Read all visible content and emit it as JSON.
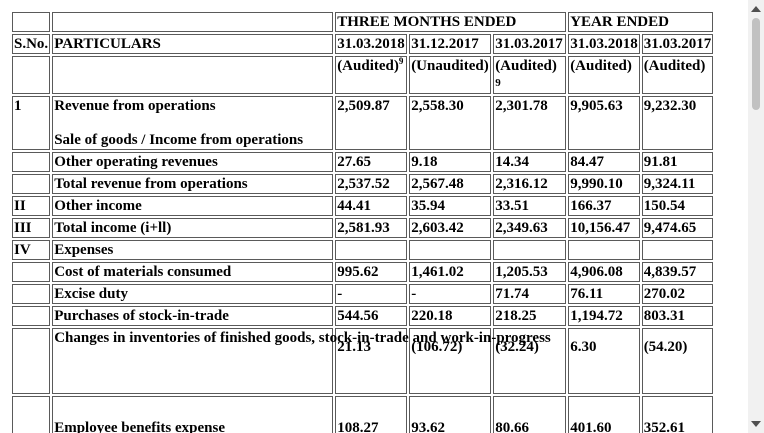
{
  "header": {
    "sno": "S.No.",
    "particulars": "PARTICULARS",
    "three_months_ended": "THREE MONTHS ENDED",
    "year_ended": "YEAR ENDED",
    "dates": [
      "31.03.2018",
      "31.12.2017",
      "31.03.2017",
      "31.03.2018",
      "31.03.2017"
    ],
    "status": [
      "(Audited)",
      "(Unaudited)",
      "(Audited)",
      "(Audited)",
      "(Audited)"
    ],
    "footnote_marker": "9"
  },
  "rows": {
    "r1": {
      "sno": "1",
      "heading": "Revenue from operations",
      "label": "Sale of goods / Income from operations",
      "v": [
        "2,509.87",
        "2,558.30",
        "2,301.78",
        "9,905.63",
        "9,232.30"
      ]
    },
    "r2": {
      "label": "Other operating revenues",
      "v": [
        "27.65",
        "9.18",
        "14.34",
        "84.47",
        "91.81"
      ]
    },
    "r3": {
      "label": "Total revenue from operations",
      "v": [
        "2,537.52",
        "2,567.48",
        "2,316.12",
        "9,990.10",
        "9,324.11"
      ]
    },
    "r4": {
      "sno": "II",
      "label": "Other income",
      "v": [
        "44.41",
        "35.94",
        "33.51",
        "166.37",
        "150.54"
      ]
    },
    "r5": {
      "sno": "III",
      "label": "Total income (i+ll)",
      "v": [
        "2,581.93",
        "2,603.42",
        "2,349.63",
        "10,156.47",
        "9,474.65"
      ]
    },
    "r6": {
      "sno": "IV",
      "label": "Expenses"
    },
    "r7": {
      "label": "Cost of materials consumed",
      "v": [
        "995.62",
        "1,461.02",
        "1,205.53",
        "4,906.08",
        "4,839.57"
      ]
    },
    "r8": {
      "label": "Excise duty",
      "v": [
        "-",
        "-",
        "71.74",
        "76.11",
        "270.02"
      ]
    },
    "r9": {
      "label": "Purchases of stock-in-trade",
      "v": [
        "544.56",
        "220.18",
        "218.25",
        "1,194.72",
        "803.31"
      ]
    },
    "r10": {
      "label": "Changes in inventories of finished goods, stock-in-trade and work-in-progress",
      "v": [
        "21.13",
        "(106.72)",
        "(32.24)",
        "6.30",
        "(54.20)"
      ]
    },
    "r11": {
      "label": "Employee benefits expense",
      "v": [
        "108.27",
        "93.62",
        "80.66",
        "401.60",
        "352.61"
      ]
    }
  },
  "scrollbar": {
    "thumb_color": "#c1c1c1",
    "track_color": "#f1f1f1"
  }
}
